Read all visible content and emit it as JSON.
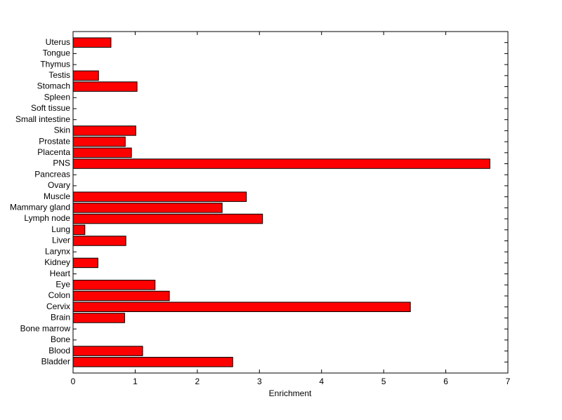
{
  "chart_data": {
    "type": "barh",
    "xlabel": "Enrichment",
    "categories": [
      "Bladder",
      "Blood",
      "Bone",
      "Bone marrow",
      "Brain",
      "Cervix",
      "Colon",
      "Eye",
      "Heart",
      "Kidney",
      "Larynx",
      "Liver",
      "Lung",
      "Lymph node",
      "Mammary gland",
      "Muscle",
      "Ovary",
      "Pancreas",
      "PNS",
      "Placenta",
      "Prostate",
      "Skin",
      "Small intestine",
      "Soft tissue",
      "Spleen",
      "Stomach",
      "Testis",
      "Thymus",
      "Tongue",
      "Uterus"
    ],
    "values": [
      2.57,
      1.12,
      0,
      0,
      0.83,
      5.43,
      1.55,
      1.32,
      0,
      0.4,
      0,
      0.85,
      0.19,
      3.05,
      2.4,
      2.79,
      0,
      0,
      6.71,
      0.94,
      0.84,
      1.01,
      0,
      0,
      0,
      1.03,
      0.41,
      0,
      0,
      0.61
    ],
    "color": "#ff0000",
    "xlim": [
      0,
      7
    ],
    "xticks": [
      0,
      1,
      2,
      3,
      4,
      5,
      6,
      7
    ],
    "grid": false
  }
}
